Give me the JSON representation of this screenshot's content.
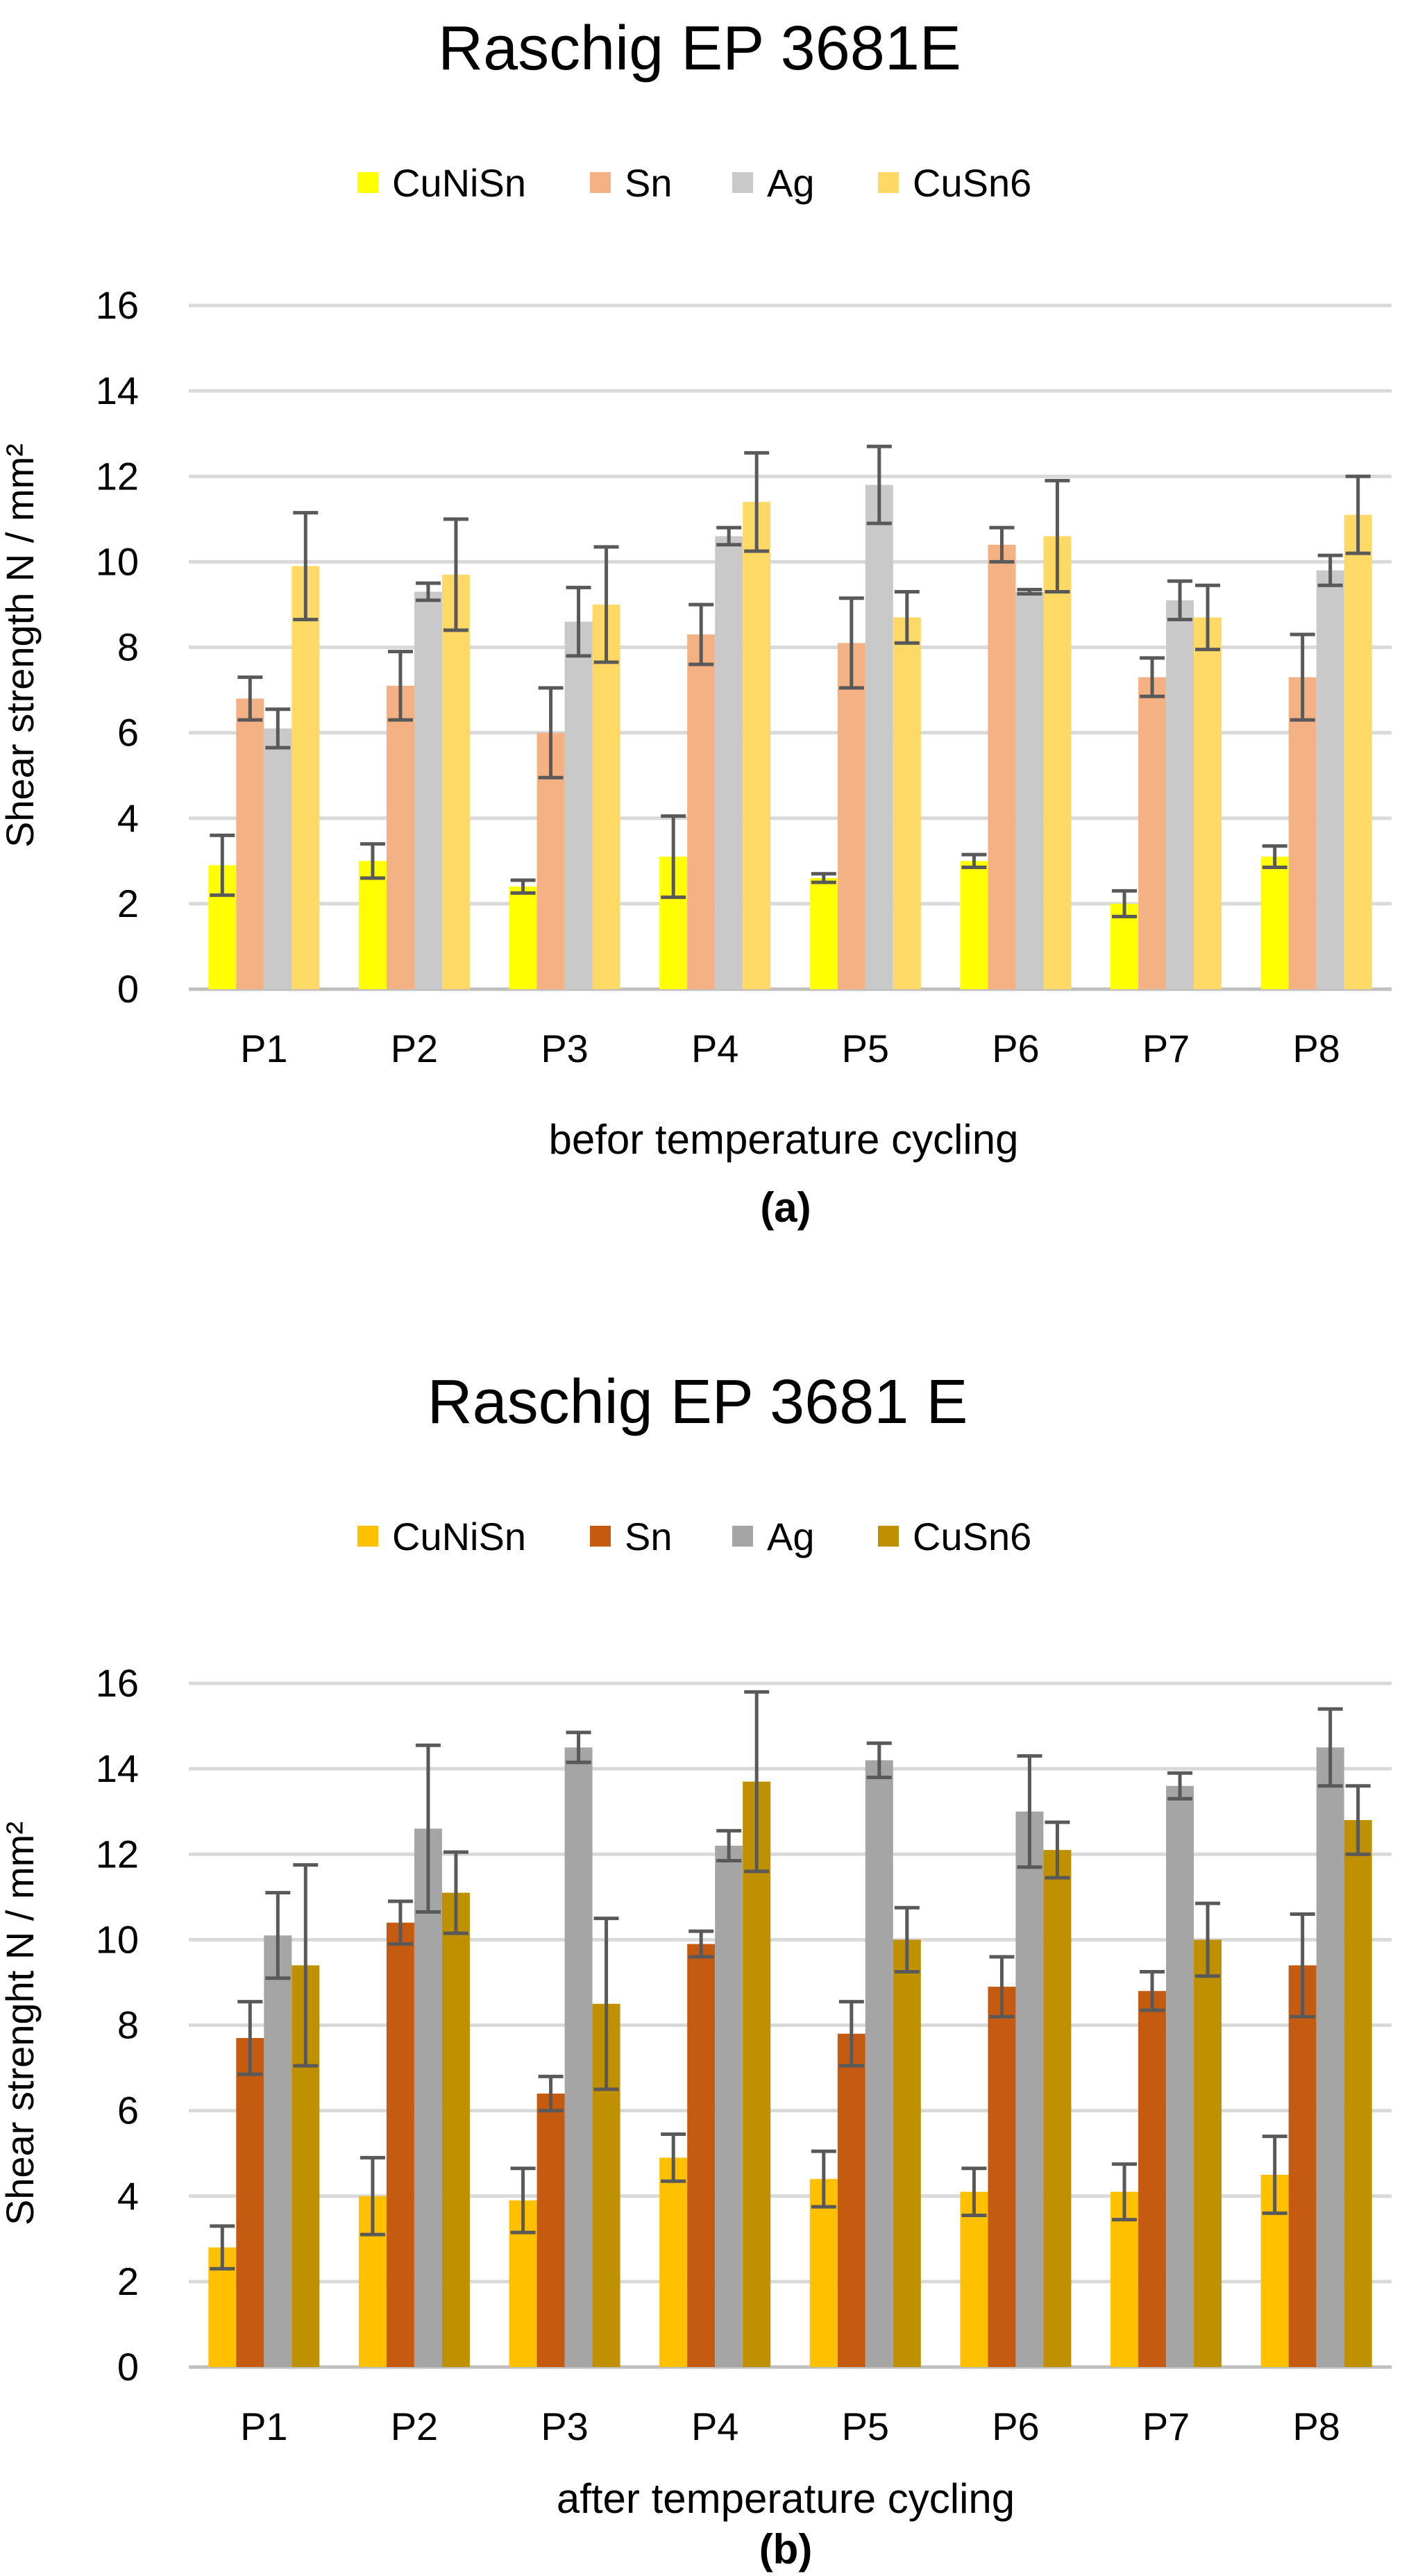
{
  "chart_data": [
    {
      "type": "bar",
      "panel_label": "(a)",
      "title": "Raschig EP 3681E",
      "xlabel": "befor temperature cycling",
      "ylabel": "Shear strength N / mm²",
      "ylim": [
        0,
        16
      ],
      "yticks": [
        "0",
        "2",
        "4",
        "6",
        "8",
        "10",
        "12",
        "14",
        "16"
      ],
      "grid": true,
      "legend_position": "top",
      "categories": [
        "P1",
        "P2",
        "P3",
        "P4",
        "P5",
        "P6",
        "P7",
        "P8"
      ],
      "series": [
        {
          "name": "CuNiSn",
          "color": "#FFFF00",
          "values": [
            2.9,
            3.0,
            2.4,
            3.1,
            2.6,
            3.0,
            2.0,
            3.1
          ],
          "errors": [
            0.7,
            0.4,
            0.15,
            0.95,
            0.1,
            0.15,
            0.3,
            0.25
          ]
        },
        {
          "name": "Sn",
          "color": "#F4B183",
          "values": [
            6.8,
            7.1,
            6.0,
            8.3,
            8.1,
            10.4,
            7.3,
            7.3
          ],
          "errors": [
            0.5,
            0.8,
            1.05,
            0.7,
            1.05,
            0.4,
            0.45,
            1.0
          ]
        },
        {
          "name": "Ag",
          "color": "#C9C9C9",
          "values": [
            6.1,
            9.3,
            8.6,
            10.6,
            11.8,
            9.3,
            9.1,
            9.8
          ],
          "errors": [
            0.45,
            0.2,
            0.8,
            0.2,
            0.9,
            0.05,
            0.45,
            0.35
          ]
        },
        {
          "name": "CuSn6",
          "color": "#FFD966",
          "values": [
            9.9,
            9.7,
            9.0,
            11.4,
            8.7,
            10.6,
            8.7,
            11.1
          ],
          "errors": [
            1.25,
            1.3,
            1.35,
            1.15,
            0.6,
            1.3,
            0.75,
            0.9
          ]
        }
      ]
    },
    {
      "type": "bar",
      "panel_label": "(b)",
      "title": "Raschig EP 3681 E",
      "xlabel": "after temperature cycling",
      "ylabel": "Shear strenght N / mm²",
      "ylim": [
        0,
        16
      ],
      "yticks": [
        "0",
        "2",
        "4",
        "6",
        "8",
        "10",
        "12",
        "14",
        "16"
      ],
      "grid": true,
      "legend_position": "top",
      "categories": [
        "P1",
        "P2",
        "P3",
        "P4",
        "P5",
        "P6",
        "P7",
        "P8"
      ],
      "series": [
        {
          "name": "CuNiSn",
          "color": "#FFC000",
          "values": [
            2.8,
            4.0,
            3.9,
            4.9,
            4.4,
            4.1,
            4.1,
            4.5
          ],
          "errors": [
            0.5,
            0.9,
            0.75,
            0.55,
            0.65,
            0.55,
            0.65,
            0.9
          ]
        },
        {
          "name": "Sn",
          "color": "#C55A11",
          "values": [
            7.7,
            10.4,
            6.4,
            9.9,
            7.8,
            8.9,
            8.8,
            9.4
          ],
          "errors": [
            0.85,
            0.5,
            0.4,
            0.3,
            0.75,
            0.7,
            0.45,
            1.2
          ]
        },
        {
          "name": "Ag",
          "color": "#A5A5A5",
          "values": [
            10.1,
            12.6,
            14.5,
            12.2,
            14.2,
            13.0,
            13.6,
            14.5
          ],
          "errors": [
            1.0,
            1.95,
            0.35,
            0.35,
            0.4,
            1.3,
            0.3,
            0.9
          ]
        },
        {
          "name": "CuSn6",
          "color": "#BF9000",
          "values": [
            9.4,
            11.1,
            8.5,
            13.7,
            10.0,
            12.1,
            10.0,
            12.8
          ],
          "errors": [
            2.35,
            0.95,
            2.0,
            2.1,
            0.75,
            0.65,
            0.85,
            0.8
          ]
        }
      ]
    }
  ]
}
